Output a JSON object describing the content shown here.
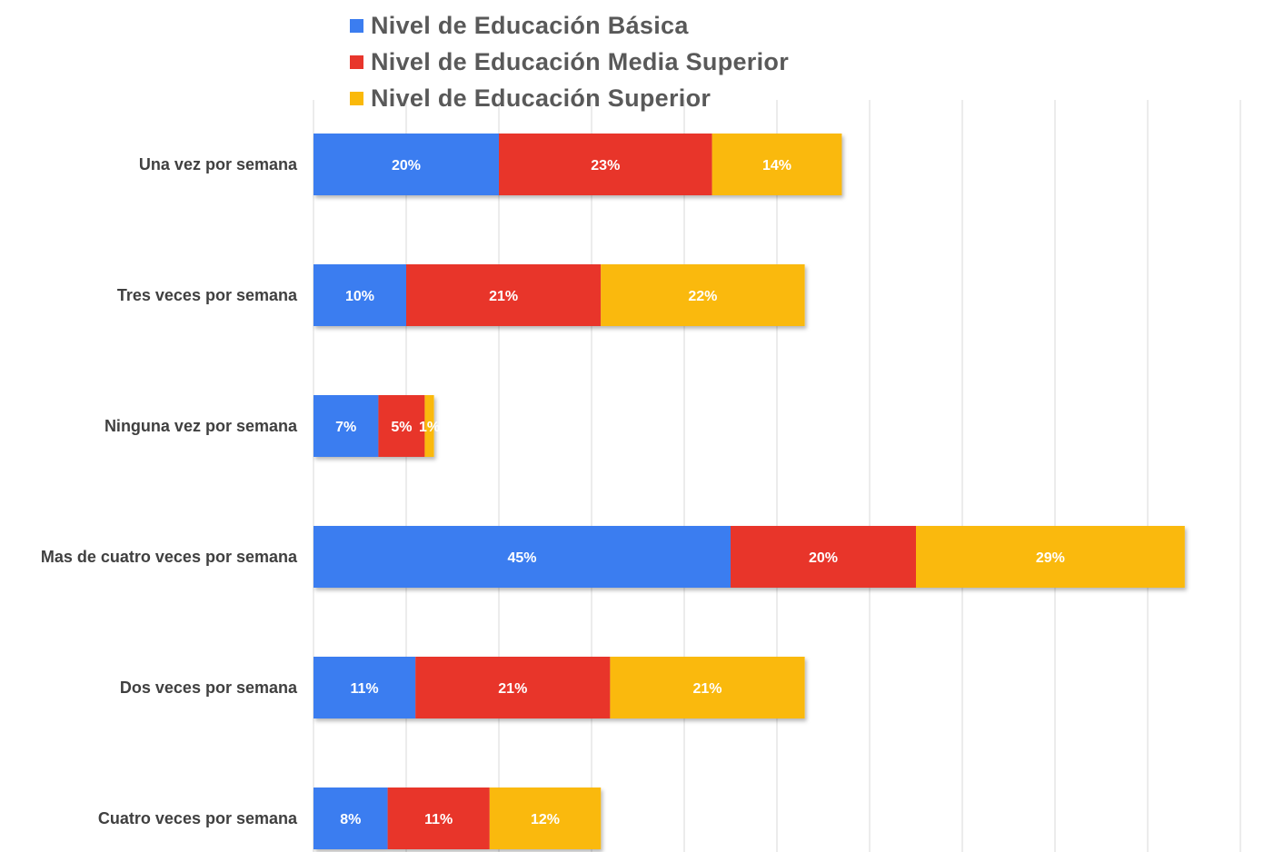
{
  "chart_data": {
    "type": "bar",
    "orientation": "horizontal",
    "stacked": true,
    "title": "",
    "xlabel": "",
    "ylabel": "",
    "xlim": [
      0,
      100
    ],
    "grid": "vertical",
    "legend_position": "top",
    "categories": [
      "Una vez por  semana",
      "Tres veces por semana",
      "Ninguna vez por semana",
      "Mas de cuatro veces por semana",
      "Dos veces por semana",
      "Cuatro veces por semana"
    ],
    "series": [
      {
        "name": "Nivel de Educación Básica",
        "color": "#3b7df0",
        "values": [
          20,
          10,
          7,
          45,
          11,
          8
        ],
        "labels": [
          "20%",
          "10%",
          "7%",
          "45%",
          "11%",
          "8%"
        ]
      },
      {
        "name": "Nivel de Educación Media Superior",
        "color": "#e8362c",
        "values": [
          23,
          21,
          5,
          20,
          21,
          11
        ],
        "labels": [
          "23%",
          "21%",
          "5%",
          "20%",
          "21%",
          "11%"
        ]
      },
      {
        "name": "Nivel de Educación Superior",
        "color": "#fab90a",
        "values": [
          14,
          22,
          1,
          29,
          21,
          12
        ],
        "labels": [
          "14%",
          "22%",
          "1%",
          "29%",
          "21%",
          "12%"
        ]
      }
    ]
  }
}
